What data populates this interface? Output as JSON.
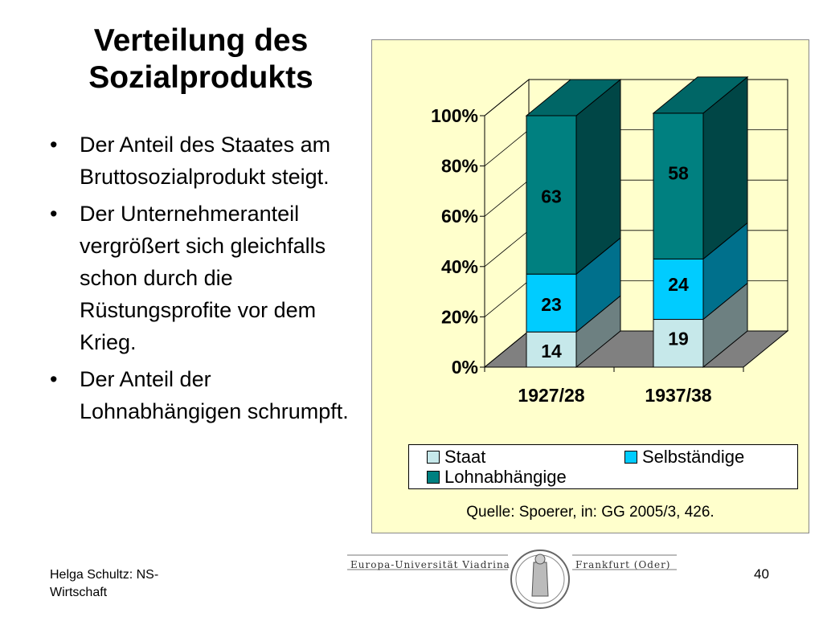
{
  "slide": {
    "title_line1": "Verteilung des",
    "title_line2": "Sozialprodukts",
    "bullets": [
      "Der Anteil des Staates am Bruttosozialprodukt steigt.",
      "Der Unternehmeranteil vergrößert sich gleichfalls schon durch die Rüstungsprofite vor dem Krieg.",
      "Der Anteil der Lohnabhängigen schrumpft."
    ],
    "bullet_glyph": "•",
    "source": "Quelle: Spoerer, in: GG 2005/3, 426.",
    "footer_line1": "Helga Schultz: NS-",
    "footer_line2": "Wirtschaft",
    "page_number": "40",
    "logo_left": "Europa-Universität Viadrina",
    "logo_right": "Frankfurt (Oder)"
  },
  "chart_data": {
    "type": "bar",
    "stacked": "percent",
    "categories": [
      "1927/28",
      "1937/38"
    ],
    "series": [
      {
        "name": "Staat",
        "values": [
          14,
          19
        ],
        "color": "#c6e8ea"
      },
      {
        "name": "Selbständige",
        "values": [
          23,
          24
        ],
        "color": "#00ccff"
      },
      {
        "name": "Lohnabhängige",
        "values": [
          63,
          58
        ],
        "color": "#008080"
      }
    ],
    "y_ticks": [
      "0%",
      "20%",
      "40%",
      "60%",
      "80%",
      "100%"
    ],
    "ylim": [
      0,
      100
    ],
    "legend_position": "bottom",
    "background": "#ffffcc",
    "three_d": true
  }
}
